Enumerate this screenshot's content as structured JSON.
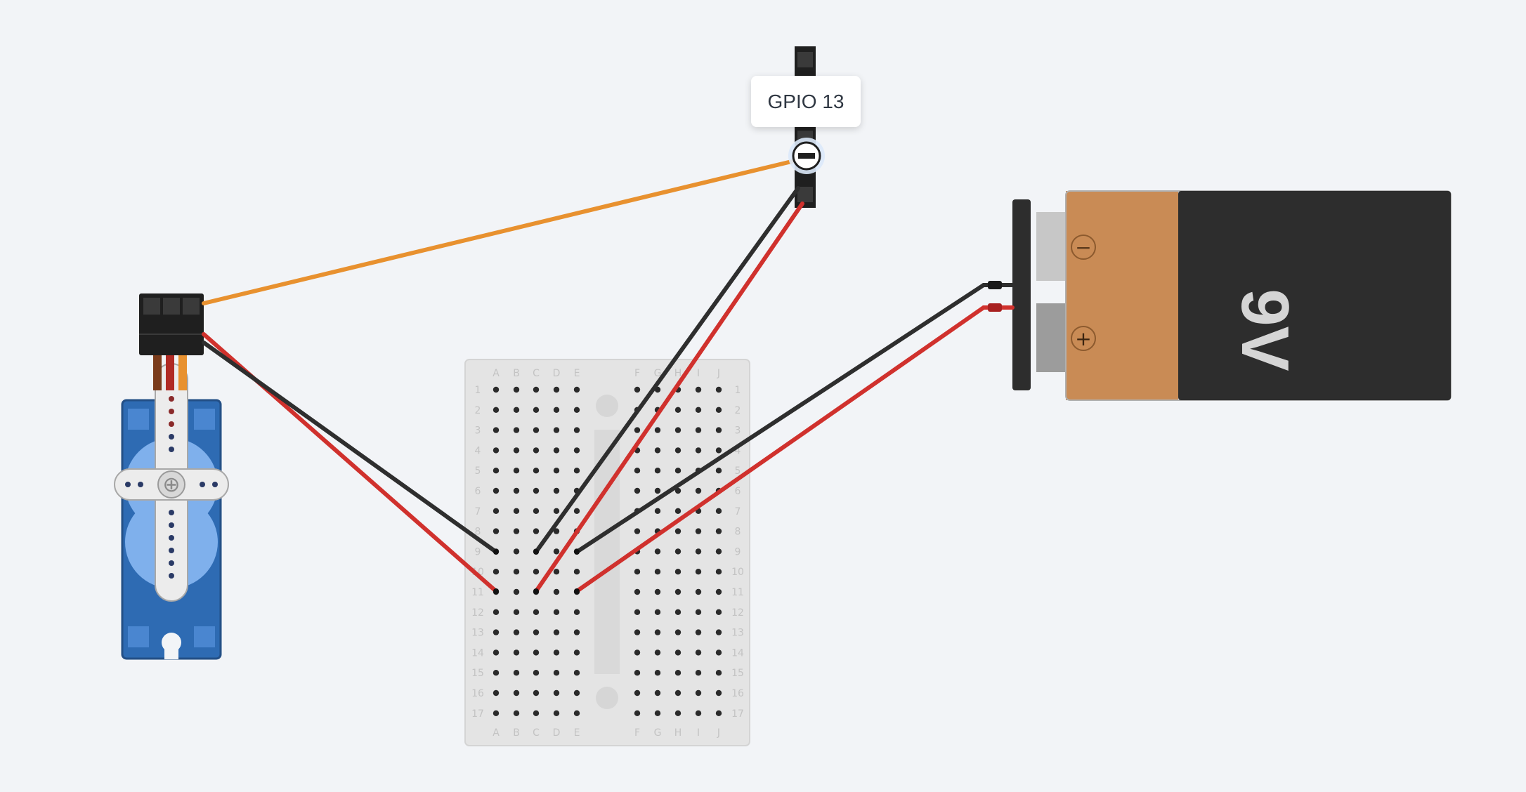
{
  "tooltip": {
    "text": "GPIO 13"
  },
  "battery": {
    "label": "9V"
  },
  "breadboard": {
    "columns_left": [
      "A",
      "B",
      "C",
      "D",
      "E"
    ],
    "columns_right": [
      "F",
      "G",
      "H",
      "I",
      "J"
    ],
    "rows": [
      "1",
      "2",
      "3",
      "4",
      "5",
      "6",
      "7",
      "8",
      "9",
      "10",
      "11",
      "12",
      "13",
      "14",
      "15",
      "16",
      "17"
    ]
  },
  "colors": {
    "background": "#f2f4f7",
    "wire_red": "#d0312d",
    "wire_black": "#2e2e2e",
    "wire_orange": "#e8912f",
    "servo_blue": "#2e6bb3",
    "battery_copper": "#c98b55",
    "battery_body": "#2d2d2d"
  }
}
